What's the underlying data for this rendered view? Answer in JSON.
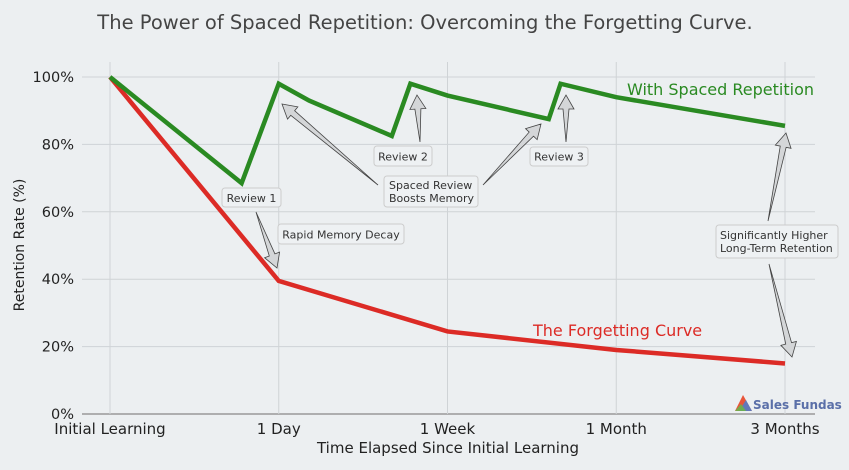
{
  "chart_data": {
    "type": "line",
    "title": "The Power of Spaced Repetition: Overcoming the Forgetting Curve.",
    "xlabel": "Time Elapsed Since Initial Learning",
    "ylabel": "Retention Rate (%)",
    "x_tick_labels": [
      "Initial Learning",
      "1 Day",
      "1 Week",
      "1 Month",
      "3 Months"
    ],
    "y_tick_labels": [
      "0%",
      "20%",
      "40%",
      "60%",
      "80%",
      "100%"
    ],
    "ylim": [
      0,
      100
    ],
    "grid": true,
    "series": [
      {
        "name": "With Spaced Repetition",
        "color": "#2a8a22",
        "x": [
          0,
          0.78,
          1,
          1.18,
          1.67,
          1.78,
          2,
          2.6,
          2.67,
          3,
          4
        ],
        "y": [
          100,
          68.5,
          98,
          93,
          82.5,
          98,
          94.5,
          87.5,
          98,
          94,
          85.5
        ]
      },
      {
        "name": "The Forgetting Curve",
        "color": "#dc2b26",
        "x": [
          0,
          1,
          2,
          3,
          4
        ],
        "y": [
          100,
          39.5,
          24.5,
          19,
          15
        ]
      }
    ],
    "annotations": {
      "review1": "Review 1",
      "review2": "Review 2",
      "review3": "Review 3",
      "decay": "Rapid Memory Decay",
      "boost_line1": "Spaced Review",
      "boost_line2": "Boosts Memory",
      "higher_line1": "Significantly Higher",
      "higher_line2": "Long-Term Retention"
    }
  },
  "logo": {
    "text": "Sales Fundas"
  }
}
